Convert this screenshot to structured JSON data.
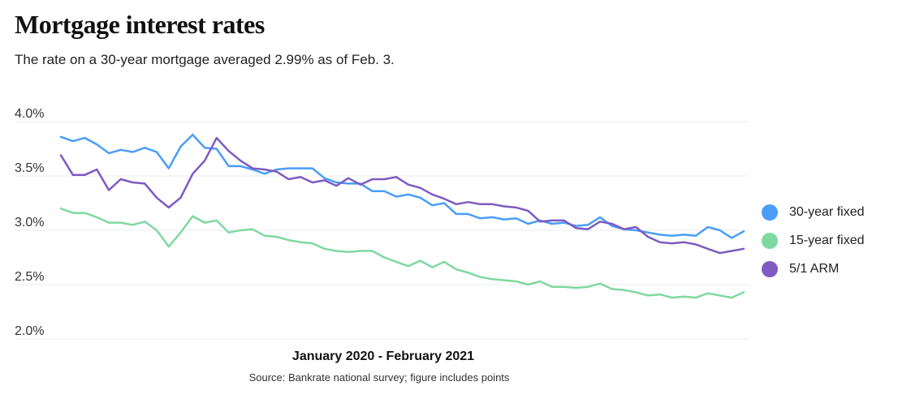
{
  "header": {
    "title": "Mortgage interest rates",
    "subtitle": "The rate on a 30-year mortgage averaged 2.99% as of Feb. 3."
  },
  "footer": {
    "source": "Source: Bankrate national survey; figure includes points"
  },
  "chart_data": {
    "type": "line",
    "title": "Mortgage interest rates",
    "xlabel": "January 2020 - February 2021",
    "ylabel": "",
    "ylim": [
      2.0,
      4.0
    ],
    "yticks": [
      {
        "value": 4.0,
        "label": "4.0%"
      },
      {
        "value": 3.5,
        "label": "3.5%"
      },
      {
        "value": 3.0,
        "label": "3.0%"
      },
      {
        "value": 2.5,
        "label": "2.5%"
      },
      {
        "value": 2.0,
        "label": "2.0%"
      }
    ],
    "grid": true,
    "legend_position": "right",
    "x_count": 58,
    "series": [
      {
        "name": "30-year fixed",
        "color": "#4a9df8",
        "values": [
          3.86,
          3.82,
          3.85,
          3.79,
          3.71,
          3.74,
          3.72,
          3.76,
          3.72,
          3.57,
          3.77,
          3.88,
          3.76,
          3.75,
          3.59,
          3.59,
          3.56,
          3.52,
          3.56,
          3.57,
          3.57,
          3.57,
          3.48,
          3.44,
          3.43,
          3.43,
          3.36,
          3.36,
          3.31,
          3.33,
          3.3,
          3.23,
          3.25,
          3.15,
          3.15,
          3.11,
          3.12,
          3.1,
          3.11,
          3.06,
          3.09,
          3.06,
          3.07,
          3.04,
          3.05,
          3.12,
          3.04,
          3.01,
          3.0,
          2.98,
          2.96,
          2.95,
          2.96,
          2.95,
          3.03,
          3.0,
          2.93,
          2.99
        ]
      },
      {
        "name": "15-year fixed",
        "color": "#7ed9a0",
        "values": [
          3.2,
          3.16,
          3.16,
          3.12,
          3.07,
          3.07,
          3.05,
          3.08,
          3.0,
          2.85,
          2.98,
          3.13,
          3.07,
          3.09,
          2.98,
          3.0,
          3.01,
          2.95,
          2.94,
          2.91,
          2.89,
          2.88,
          2.83,
          2.81,
          2.8,
          2.81,
          2.81,
          2.75,
          2.71,
          2.67,
          2.72,
          2.66,
          2.71,
          2.64,
          2.61,
          2.57,
          2.55,
          2.54,
          2.53,
          2.5,
          2.53,
          2.48,
          2.48,
          2.47,
          2.48,
          2.51,
          2.46,
          2.45,
          2.43,
          2.4,
          2.41,
          2.38,
          2.39,
          2.38,
          2.42,
          2.4,
          2.38,
          2.43
        ]
      },
      {
        "name": "5/1 ARM",
        "color": "#7e5ac2",
        "values": [
          3.69,
          3.51,
          3.51,
          3.56,
          3.37,
          3.47,
          3.44,
          3.43,
          3.3,
          3.21,
          3.3,
          3.52,
          3.64,
          3.85,
          3.73,
          3.64,
          3.57,
          3.56,
          3.54,
          3.47,
          3.49,
          3.44,
          3.46,
          3.41,
          3.48,
          3.42,
          3.47,
          3.47,
          3.49,
          3.42,
          3.39,
          3.33,
          3.29,
          3.24,
          3.26,
          3.24,
          3.24,
          3.22,
          3.21,
          3.18,
          3.08,
          3.09,
          3.09,
          3.02,
          3.01,
          3.08,
          3.06,
          3.01,
          3.03,
          2.94,
          2.89,
          2.88,
          2.89,
          2.87,
          2.83,
          2.79,
          2.81,
          2.83
        ]
      }
    ]
  }
}
